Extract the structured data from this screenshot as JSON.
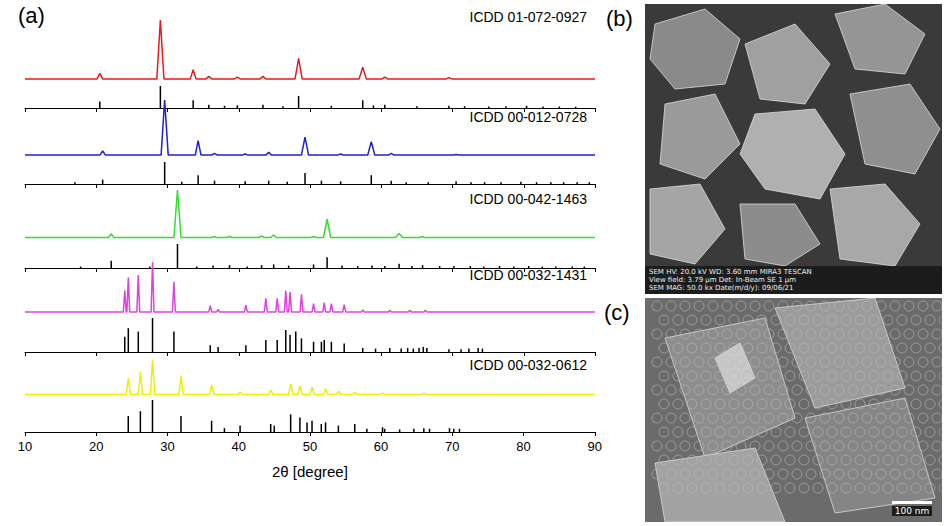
{
  "chart_data": {
    "type": "line",
    "panel_label": "(a)",
    "x_label": "2θ [degree]",
    "xlim": [
      10,
      90
    ],
    "xticks": [
      10,
      20,
      30,
      40,
      50,
      60,
      70,
      80,
      90
    ],
    "ylim": [
      0,
      1
    ],
    "tick_labels": "x",
    "grid": false,
    "series": [
      {
        "name": "ICDD 01-072-0927",
        "color": "#e8191f",
        "x": [
          10,
          20.1,
          20.5,
          20.9,
          28.5,
          29.0,
          29.5,
          33.2,
          33.6,
          34.0,
          35.4,
          35.8,
          36.2,
          39.4,
          39.8,
          40.2,
          43.0,
          43.4,
          43.8,
          47.9,
          48.4,
          48.9,
          56.9,
          57.4,
          57.9,
          60.1,
          60.5,
          60.9,
          69.1,
          69.5,
          69.9,
          90
        ],
        "values": [
          0.05,
          0.05,
          0.14,
          0.05,
          0.05,
          1.0,
          0.05,
          0.05,
          0.2,
          0.05,
          0.05,
          0.09,
          0.05,
          0.05,
          0.08,
          0.05,
          0.05,
          0.09,
          0.05,
          0.05,
          0.38,
          0.05,
          0.05,
          0.24,
          0.05,
          0.05,
          0.08,
          0.05,
          0.05,
          0.07,
          0.05,
          0.05
        ],
        "reference": {
          "type": "bar",
          "color": "#000000",
          "x": [
            20.5,
            29.0,
            33.6,
            35.8,
            38.0,
            39.8,
            43.4,
            46.2,
            48.4,
            53.0,
            57.4,
            58.9,
            60.5,
            65.0,
            69.5,
            71.7,
            75.1,
            77.5,
            80.4,
            82.7,
            85.0,
            87.3
          ],
          "values": [
            0.3,
            1.0,
            0.35,
            0.15,
            0.1,
            0.12,
            0.15,
            0.08,
            0.55,
            0.1,
            0.35,
            0.12,
            0.15,
            0.08,
            0.1,
            0.08,
            0.07,
            0.08,
            0.1,
            0.07,
            0.07,
            0.06
          ]
        }
      },
      {
        "name": "ICDD 00-012-0728",
        "color": "#1f1fd6",
        "x": [
          10,
          20.5,
          20.9,
          21.3,
          29.1,
          29.6,
          30.1,
          33.9,
          34.3,
          34.7,
          36.2,
          36.6,
          37.0,
          40.5,
          40.9,
          41.3,
          43.8,
          44.2,
          44.6,
          48.8,
          49.3,
          49.8,
          53.9,
          54.3,
          54.7,
          58.1,
          58.6,
          59.1,
          61.0,
          61.4,
          61.8,
          70.1,
          70.5,
          70.9,
          90
        ],
        "values": [
          0.05,
          0.05,
          0.12,
          0.05,
          0.05,
          1.0,
          0.05,
          0.05,
          0.3,
          0.05,
          0.05,
          0.08,
          0.05,
          0.05,
          0.07,
          0.05,
          0.05,
          0.1,
          0.05,
          0.05,
          0.36,
          0.05,
          0.05,
          0.07,
          0.05,
          0.05,
          0.28,
          0.05,
          0.05,
          0.08,
          0.05,
          0.05,
          0.06,
          0.05,
          0.05
        ],
        "reference": {
          "type": "bar",
          "color": "#000000",
          "x": [
            17.0,
            20.9,
            29.6,
            32.0,
            34.3,
            36.6,
            40.9,
            44.2,
            46.8,
            49.3,
            51.6,
            54.3,
            58.6,
            61.4,
            63.5,
            66.6,
            70.5,
            72.6,
            74.5,
            76.8,
            79.6,
            81.8,
            83.8,
            85.6,
            87.5,
            89.2
          ],
          "values": [
            0.08,
            0.2,
            1.0,
            0.1,
            0.4,
            0.15,
            0.12,
            0.15,
            0.1,
            0.5,
            0.15,
            0.12,
            0.4,
            0.15,
            0.08,
            0.08,
            0.12,
            0.08,
            0.08,
            0.08,
            0.1,
            0.08,
            0.08,
            0.08,
            0.08,
            0.08
          ]
        }
      },
      {
        "name": "ICDD 00-042-1463",
        "color": "#33dd33",
        "x": [
          10,
          21.7,
          22.1,
          22.5,
          30.9,
          31.4,
          31.9,
          36.1,
          36.5,
          36.9,
          38.3,
          38.7,
          39.1,
          42.8,
          43.2,
          43.6,
          44.5,
          44.9,
          45.3,
          50.1,
          50.5,
          50.9,
          51.9,
          52.4,
          52.9,
          62.0,
          62.5,
          63.0,
          65.3,
          65.7,
          66.1,
          90
        ],
        "values": [
          0.05,
          0.05,
          0.12,
          0.05,
          0.05,
          1.0,
          0.05,
          0.05,
          0.07,
          0.05,
          0.05,
          0.07,
          0.05,
          0.05,
          0.08,
          0.05,
          0.05,
          0.1,
          0.05,
          0.05,
          0.07,
          0.05,
          0.05,
          0.42,
          0.05,
          0.05,
          0.13,
          0.05,
          0.05,
          0.07,
          0.05,
          0.05
        ],
        "reference": {
          "type": "bar",
          "color": "#000000",
          "x": [
            17.8,
            22.1,
            27.5,
            31.4,
            34.1,
            36.4,
            38.7,
            41.2,
            43.2,
            44.9,
            47.0,
            50.5,
            52.4,
            54.5,
            56.7,
            58.7,
            60.5,
            62.5,
            64.3,
            65.8,
            68.2,
            70.2,
            72.5,
            74.4,
            76.6,
            78.6,
            80.7,
            82.6,
            84.5,
            86.8,
            88.5
          ],
          "values": [
            0.06,
            0.3,
            0.06,
            1.0,
            0.06,
            0.1,
            0.12,
            0.06,
            0.12,
            0.15,
            0.1,
            0.15,
            0.45,
            0.1,
            0.08,
            0.1,
            0.08,
            0.18,
            0.08,
            0.12,
            0.08,
            0.08,
            0.08,
            0.06,
            0.08,
            0.06,
            0.08,
            0.06,
            0.06,
            0.06,
            0.06
          ]
        }
      },
      {
        "name": "ICDD 00-032-1431",
        "color": "#e040e0",
        "x": [
          10,
          23.8,
          24.0,
          24.2,
          24.3,
          24.5,
          24.7,
          25.7,
          25.9,
          26.1,
          27.7,
          27.9,
          28.1,
          30.7,
          30.9,
          31.1,
          35.8,
          36.0,
          36.2,
          36.9,
          37.1,
          37.3,
          40.8,
          41.0,
          41.2,
          43.6,
          43.8,
          44.0,
          45.2,
          45.4,
          45.6,
          46.4,
          46.6,
          46.8,
          47.0,
          47.2,
          47.4,
          48.6,
          48.8,
          49.0,
          50.3,
          50.5,
          50.7,
          51.8,
          52.0,
          52.2,
          52.8,
          53.0,
          53.2,
          54.6,
          54.8,
          55.0,
          57.2,
          57.4,
          57.6,
          61.0,
          61.2,
          61.4,
          63.8,
          64.0,
          64.2,
          66.0,
          66.2,
          66.4,
          90
        ],
        "values": [
          0.04,
          0.04,
          0.45,
          0.04,
          0.04,
          0.7,
          0.04,
          0.04,
          0.75,
          0.04,
          0.04,
          1.0,
          0.04,
          0.04,
          0.62,
          0.04,
          0.04,
          0.16,
          0.04,
          0.04,
          0.09,
          0.04,
          0.04,
          0.17,
          0.04,
          0.04,
          0.3,
          0.04,
          0.04,
          0.3,
          0.04,
          0.04,
          0.45,
          0.04,
          0.04,
          0.42,
          0.04,
          0.04,
          0.38,
          0.04,
          0.04,
          0.2,
          0.04,
          0.04,
          0.22,
          0.04,
          0.04,
          0.2,
          0.04,
          0.04,
          0.18,
          0.04,
          0.04,
          0.08,
          0.04,
          0.04,
          0.07,
          0.04,
          0.04,
          0.07,
          0.04,
          0.04,
          0.07,
          0.04,
          0.04
        ],
        "reference": {
          "type": "bar",
          "color": "#000000",
          "x": [
            24.0,
            24.5,
            25.9,
            27.9,
            30.9,
            36.0,
            37.1,
            41.0,
            43.8,
            45.4,
            46.6,
            47.2,
            48.0,
            48.8,
            50.5,
            51.6,
            52.0,
            53.0,
            54.8,
            57.4,
            59.2,
            61.2,
            62.8,
            63.7,
            64.5,
            65.3,
            65.9,
            66.4,
            69.5,
            71.2,
            72.3,
            73.6,
            74.2
          ],
          "values": [
            0.45,
            0.7,
            0.6,
            1.0,
            0.6,
            0.2,
            0.15,
            0.2,
            0.35,
            0.35,
            0.65,
            0.5,
            0.6,
            0.4,
            0.3,
            0.3,
            0.35,
            0.3,
            0.25,
            0.12,
            0.1,
            0.12,
            0.1,
            0.12,
            0.1,
            0.12,
            0.15,
            0.12,
            0.08,
            0.08,
            0.1,
            0.12,
            0.1
          ]
        }
      },
      {
        "name": "ICDD 00-032-0612",
        "color": "#eeee00",
        "x": [
          10,
          24.2,
          24.5,
          24.8,
          25.9,
          26.2,
          26.5,
          27.6,
          27.9,
          28.2,
          31.6,
          31.9,
          32.2,
          35.9,
          36.2,
          36.5,
          39.9,
          40.2,
          40.5,
          44.2,
          44.5,
          44.8,
          47.0,
          47.3,
          47.6,
          48.3,
          48.6,
          48.9,
          50.0,
          50.3,
          50.6,
          51.9,
          52.2,
          52.5,
          53.7,
          54.0,
          54.3,
          56.0,
          56.3,
          56.6,
          59.9,
          60.2,
          60.5,
          65.7,
          66.0,
          66.3,
          90
        ],
        "values": [
          0.04,
          0.04,
          0.45,
          0.04,
          0.04,
          0.6,
          0.04,
          0.04,
          0.9,
          0.04,
          0.04,
          0.5,
          0.04,
          0.04,
          0.28,
          0.04,
          0.04,
          0.1,
          0.04,
          0.04,
          0.15,
          0.04,
          0.04,
          0.3,
          0.04,
          0.04,
          0.25,
          0.04,
          0.04,
          0.22,
          0.04,
          0.04,
          0.18,
          0.04,
          0.04,
          0.12,
          0.04,
          0.04,
          0.1,
          0.04,
          0.04,
          0.07,
          0.04,
          0.04,
          0.07,
          0.04,
          0.04
        ],
        "reference": {
          "type": "bar",
          "color": "#000000",
          "x": [
            24.5,
            26.2,
            27.9,
            31.9,
            36.2,
            38.0,
            40.2,
            44.5,
            45.0,
            47.3,
            48.6,
            49.6,
            50.3,
            51.6,
            52.2,
            54.0,
            56.3,
            58.0,
            60.2,
            60.5,
            62.6,
            64.6,
            66.0,
            66.8,
            69.6,
            70.2,
            71.0
          ],
          "values": [
            0.5,
            0.65,
            1.0,
            0.5,
            0.35,
            0.12,
            0.2,
            0.25,
            0.2,
            0.55,
            0.45,
            0.3,
            0.35,
            0.25,
            0.3,
            0.2,
            0.25,
            0.1,
            0.15,
            0.1,
            0.08,
            0.1,
            0.12,
            0.1,
            0.12,
            0.1,
            0.1
          ]
        }
      }
    ]
  },
  "images": [
    {
      "panel_label": "(b)",
      "info_lines": [
        "SEM HV: 20.0 kV    WD: 3.60 mm    MIRA3 TESCAN",
        "View field: 3.79 µm    Det: In-Beam SE    1 µm",
        "SEM MAG: 50.0 kx    Date(m/d/y): 09/06/21"
      ]
    },
    {
      "panel_label": "(c)",
      "scale_bar": "100 nm"
    }
  ]
}
